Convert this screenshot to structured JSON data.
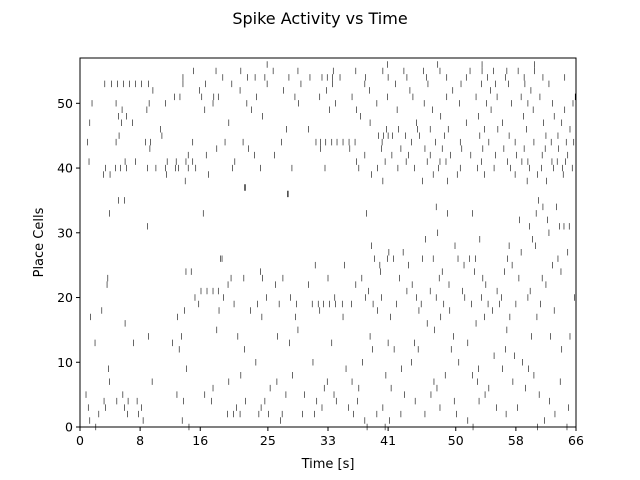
{
  "chart_data": {
    "type": "raster",
    "title": "Spike Activity vs Time",
    "xlabel": "Time [s]",
    "ylabel": "Place Cells",
    "xlim": [
      0,
      66
    ],
    "ylim": [
      0,
      57
    ],
    "x_ticks": [
      0,
      8,
      16,
      25,
      33,
      41,
      50,
      58,
      66
    ],
    "y_ticks": [
      0,
      10,
      20,
      30,
      40,
      50
    ],
    "grid": false,
    "mark_color": "#000000",
    "spike_trains": [
      {
        "cell": 0,
        "times": [
          2.1,
          14.5,
          38.2,
          40.6,
          52.3,
          60.9,
          64.8
        ]
      },
      {
        "cell": 1,
        "times": [
          1.3,
          8.4,
          13.6,
          26.7,
          37.9,
          41.2,
          51.6,
          61.8
        ]
      },
      {
        "cell": 2,
        "times": [
          2.5,
          6.3,
          7.8,
          19.6,
          20.4,
          21.3,
          23.8,
          25.1,
          26.9,
          29.6,
          31.2,
          36.4,
          39.5,
          42.7,
          45.9,
          50.1,
          56.7,
          63.2
        ]
      },
      {
        "cell": 3,
        "times": [
          1.1,
          3.4,
          5.9,
          8.2,
          20.8,
          24.1,
          32.2,
          35.7,
          40.3,
          47.9,
          55.4,
          58.2,
          65.0
        ]
      },
      {
        "cell": 4,
        "times": [
          3.2,
          4.9,
          6.4,
          7.6,
          13.8,
          17.5,
          22.0,
          24.6,
          31.5,
          34.1,
          36.9,
          44.6,
          49.8,
          53.1,
          62.5
        ]
      },
      {
        "cell": 5,
        "times": [
          0.8,
          5.7,
          12.9,
          16.6,
          27.4,
          29.9,
          33.8,
          43.2,
          46.7,
          53.9,
          61.1
        ]
      },
      {
        "cell": 6,
        "times": [
          17.7,
          25.3,
          32.5,
          37.1,
          41.4,
          47.5,
          54.4,
          59.3
        ]
      },
      {
        "cell": 7,
        "times": [
          3.9,
          9.6,
          19.8,
          26.2,
          32.9,
          36.2,
          47.1,
          52.9,
          57.6,
          63.9
        ]
      },
      {
        "cell": 8,
        "times": [
          21.4,
          28.3,
          40.7,
          48.6,
          52.2,
          60.4
        ]
      },
      {
        "cell": 9,
        "times": [
          3.8,
          14.2,
          35.4,
          42.8,
          53.0,
          56.2,
          59.7
        ]
      },
      {
        "cell": 10,
        "times": [
          23.4,
          31.0,
          37.6,
          44.1,
          50.4,
          58.9
        ]
      },
      {
        "cell": 11,
        "times": [
          55.1,
          57.8
        ]
      },
      {
        "cell": 12,
        "times": [
          13.2,
          21.9,
          38.9,
          41.8,
          45.0,
          49.4,
          56.6,
          64.1
        ]
      },
      {
        "cell": 13,
        "times": [
          2.0,
          7.1,
          12.3,
          27.9,
          33.5,
          41.0,
          44.5,
          51.6
        ]
      },
      {
        "cell": 14,
        "times": [
          9.1,
          13.5,
          21.0,
          26.3,
          38.6,
          49.7,
          60.1,
          62.6,
          65.2
        ]
      },
      {
        "cell": 15,
        "times": [
          18.2,
          29.0,
          47.2,
          56.8
        ]
      },
      {
        "cell": 16,
        "times": [
          6.0,
          46.2,
          52.7
        ]
      },
      {
        "cell": 17,
        "times": [
          1.4,
          13.0,
          24.2,
          28.7,
          35.0,
          41.3,
          48.0,
          53.8,
          57.2,
          60.8
        ]
      },
      {
        "cell": 18,
        "times": [
          2.9,
          13.9,
          18.5,
          22.7,
          31.9,
          39.6,
          45.1,
          49.2,
          54.9,
          63.1
        ]
      },
      {
        "cell": 19,
        "times": [
          15.8,
          20.5,
          23.6,
          26.5,
          28.8,
          30.9,
          31.7,
          32.4,
          33.2,
          34.0,
          34.9,
          36.1,
          39.0,
          42.1,
          45.4,
          48.4,
          52.1,
          54.3,
          55.8,
          58.0,
          61.3
        ]
      },
      {
        "cell": 20,
        "times": [
          15.3,
          19.1,
          24.8,
          28.0,
          33.9,
          38.0,
          40.1,
          44.8,
          47.4,
          51.2,
          53.4,
          56.1,
          59.6,
          65.8
        ]
      },
      {
        "cell": 21,
        "times": [
          16.1,
          16.9,
          17.7,
          18.4,
          38.4,
          43.5,
          46.6,
          50.9,
          55.5,
          59.9
        ]
      },
      {
        "cell": 22,
        "times": [
          3.6,
          19.7,
          26.0,
          30.4,
          36.7,
          44.2,
          49.1,
          54.0,
          62.0
        ]
      },
      {
        "cell": 23,
        "times": [
          3.7,
          20.1,
          21.8,
          24.3,
          27.0,
          33.0,
          37.5,
          42.5,
          47.8,
          53.6,
          58.4,
          61.5
        ]
      },
      {
        "cell": 24,
        "times": [
          14.1,
          14.8,
          24.0,
          40.0,
          48.2,
          52.5,
          56.5,
          64.0
        ]
      },
      {
        "cell": 25,
        "times": [
          31.3,
          35.2,
          39.9,
          43.7,
          51.1,
          57.5,
          62.9
        ]
      },
      {
        "cell": 26,
        "times": [
          18.7,
          18.9,
          39.2,
          40.9,
          41.7,
          45.6,
          47.0,
          50.3,
          51.8,
          52.6,
          56.9,
          63.6
        ]
      },
      {
        "cell": 27,
        "times": [
          41.1,
          43.0,
          58.7,
          64.9
        ]
      },
      {
        "cell": 28,
        "times": [
          38.8,
          49.9,
          57.1,
          60.6
        ]
      },
      {
        "cell": 29,
        "times": [
          46.0,
          53.2,
          60.2
        ]
      },
      {
        "cell": 30,
        "times": [
          47.6,
          62.4
        ]
      },
      {
        "cell": 31,
        "times": [
          9.0,
          59.8,
          63.8,
          64.4,
          65.1
        ]
      },
      {
        "cell": 32,
        "times": [
          58.5,
          62.2
        ]
      },
      {
        "cell": 33,
        "times": [
          3.9,
          16.4,
          38.1,
          48.9,
          52.2,
          60.7
        ]
      },
      {
        "cell": 34,
        "times": [
          47.4,
          61.6,
          63.4
        ]
      },
      {
        "cell": 35,
        "times": [
          5.1,
          5.9,
          61.0
        ]
      },
      {
        "cell": 36,
        "times": [
          27.6,
          27.7
        ]
      },
      {
        "cell": 37,
        "times": [
          21.9,
          22.0
        ]
      },
      {
        "cell": 38,
        "times": [
          14.0,
          40.3,
          45.6,
          48.9,
          59.5,
          62.1
        ]
      },
      {
        "cell": 39,
        "times": [
          3.1,
          4.0,
          11.5,
          17.1,
          38.8,
          47.0,
          50.2,
          53.8,
          57.9,
          60.9,
          64.3
        ]
      },
      {
        "cell": 40,
        "times": [
          3.4,
          4.7,
          5.4,
          6.2,
          9.0,
          10.1,
          11.4,
          12.7,
          13.1,
          14.4,
          15.4,
          20.3,
          24.0,
          28.2,
          32.6,
          37.1,
          39.6,
          42.3,
          44.5,
          47.7,
          50.6,
          52.9,
          55.1,
          57.3,
          59.8,
          61.4,
          63.0,
          64.2,
          65.5
        ]
      },
      {
        "cell": 41,
        "times": [
          1.2,
          6.0,
          7.4,
          11.6,
          12.8,
          14.1,
          15.0,
          20.6,
          36.8,
          40.6,
          43.4,
          46.2,
          47.9,
          48.7,
          53.4,
          56.9,
          58.8,
          59.6,
          62.8,
          63.5,
          64.6
        ]
      },
      {
        "cell": 42,
        "times": [
          14.4,
          16.8,
          23.2,
          25.9,
          37.9,
          41.5,
          43.7,
          46.6,
          49.3,
          52.0,
          55.3,
          58.1,
          61.5,
          64.9
        ]
      },
      {
        "cell": 43,
        "times": [
          9.3,
          18.2,
          22.4,
          32.0,
          35.9,
          40.1,
          42.7,
          45.9,
          48.2,
          50.8,
          53.6,
          56.4,
          59.1,
          61.9,
          63.7
        ]
      },
      {
        "cell": 44,
        "times": [
          1.0,
          4.8,
          8.7,
          9.4,
          15.0,
          19.3,
          21.7,
          26.8,
          31.4,
          32.0,
          32.7,
          33.5,
          34.2,
          35.0,
          35.8,
          36.6,
          40.2,
          44.1,
          47.3,
          50.6,
          54.4,
          57.9,
          60.4,
          62.7,
          64.7,
          65.7
        ]
      },
      {
        "cell": 45,
        "times": [
          5.2,
          10.9,
          39.7,
          40.4,
          41.0,
          41.6,
          43.3,
          45.2,
          48.5,
          53.2,
          57.1,
          62.0,
          63.6
        ]
      },
      {
        "cell": 46,
        "times": [
          10.7,
          27.5,
          30.4,
          40.8,
          42.4,
          44.9,
          46.6,
          49.0,
          53.8,
          55.6,
          59.4,
          65.2
        ]
      },
      {
        "cell": 47,
        "times": [
          1.3,
          5.5,
          7.0,
          19.8,
          38.6,
          44.8,
          51.4,
          56.2,
          61.7,
          64.1
        ]
      },
      {
        "cell": 48,
        "times": [
          5.1,
          6.2,
          24.3,
          37.3,
          48.0,
          53.0,
          59.0,
          63.1
        ]
      },
      {
        "cell": 49,
        "times": [
          5.6,
          8.9,
          16.6,
          22.8,
          33.2,
          36.8,
          42.2,
          46.9,
          54.7,
          60.3,
          64.5
        ]
      },
      {
        "cell": 50,
        "times": [
          1.6,
          4.8,
          9.2,
          11.4,
          17.7,
          22.2,
          29.1,
          34.0,
          39.5,
          45.8,
          50.5,
          54.1,
          57.4,
          59.6,
          62.9,
          65.6
        ]
      },
      {
        "cell": 51,
        "times": [
          12.6,
          13.3,
          16.2,
          17.8,
          18.4,
          23.5,
          28.6,
          31.9,
          36.2,
          40.9,
          44.3,
          48.8,
          52.7,
          55.5,
          58.7,
          61.2,
          65.9
        ]
      },
      {
        "cell": 52,
        "times": [
          9.7,
          15.9,
          21.3,
          27.1,
          32.8,
          38.5,
          43.9,
          49.6,
          54.6,
          60.0
        ]
      },
      {
        "cell": 53,
        "times": [
          3.3,
          4.2,
          5.0,
          5.8,
          6.6,
          7.4,
          8.2,
          9.1,
          13.7,
          16.7,
          20.2,
          24.9,
          29.4,
          33.6,
          37.9,
          42.0,
          46.3,
          50.7,
          53.4,
          55.3,
          57.0,
          59.2,
          62.4
        ]
      },
      {
        "cell": 54,
        "times": [
          13.7,
          19.0,
          22.3,
          23.3,
          24.6,
          27.8,
          30.6,
          32.2,
          32.9,
          33.6,
          34.6,
          38.0,
          41.0,
          43.5,
          46.1,
          48.8,
          51.4,
          54.2,
          56.6,
          59.1,
          61.6,
          64.5
        ]
      },
      {
        "cell": 55,
        "times": [
          15.1,
          18.1,
          21.4,
          25.7,
          29.0,
          33.7,
          36.7,
          40.3,
          43.1,
          45.7,
          47.9,
          51.9,
          53.5,
          55.0,
          56.8,
          58.3,
          60.5
        ]
      },
      {
        "cell": 56,
        "times": [
          24.9,
          40.9,
          47.6,
          53.5,
          60.5
        ]
      }
    ]
  }
}
